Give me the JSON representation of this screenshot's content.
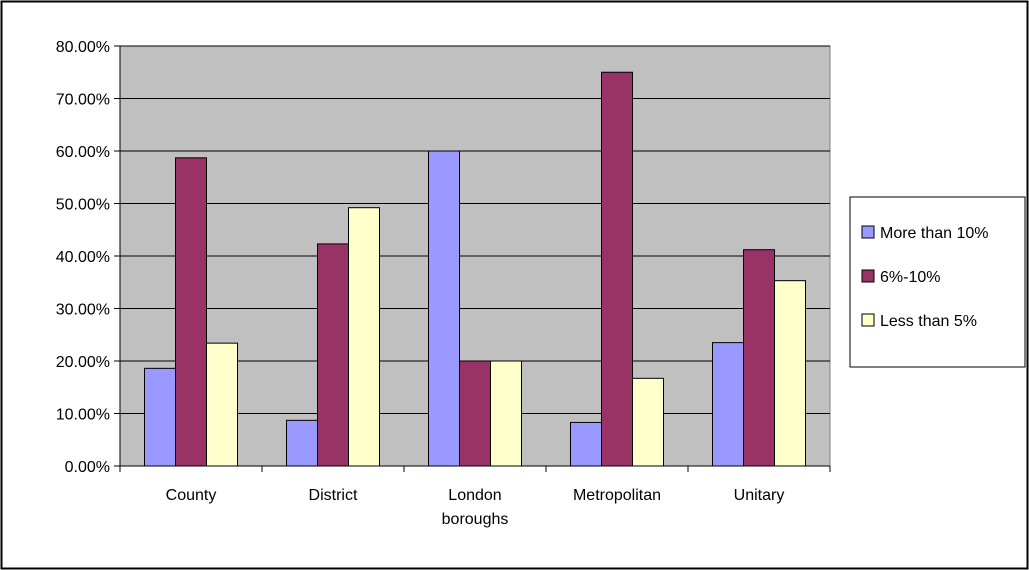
{
  "chart_data": {
    "type": "bar",
    "categories": [
      [
        "County"
      ],
      [
        "District"
      ],
      [
        "London",
        "boroughs"
      ],
      [
        "Metropolitan"
      ],
      [
        "Unitary"
      ]
    ],
    "series": [
      {
        "name": "More than 10%",
        "color": "#9999FF",
        "values": [
          18.6,
          8.7,
          60.0,
          8.3,
          23.5
        ]
      },
      {
        "name": "6%-10%",
        "color": "#993366",
        "values": [
          58.7,
          42.3,
          20.0,
          75.0,
          41.2
        ]
      },
      {
        "name": "Less than 5%",
        "color": "#FFFFCC",
        "values": [
          23.4,
          49.2,
          20.0,
          16.7,
          35.3
        ]
      }
    ],
    "y_ticks": [
      "0.00%",
      "10.00%",
      "20.00%",
      "30.00%",
      "40.00%",
      "50.00%",
      "60.00%",
      "70.00%",
      "80.00%"
    ],
    "ylim": [
      0,
      80
    ],
    "grid": true,
    "plot_background": "#C0C0C0",
    "legend_position": "right",
    "title": "",
    "xlabel": "",
    "ylabel": ""
  }
}
